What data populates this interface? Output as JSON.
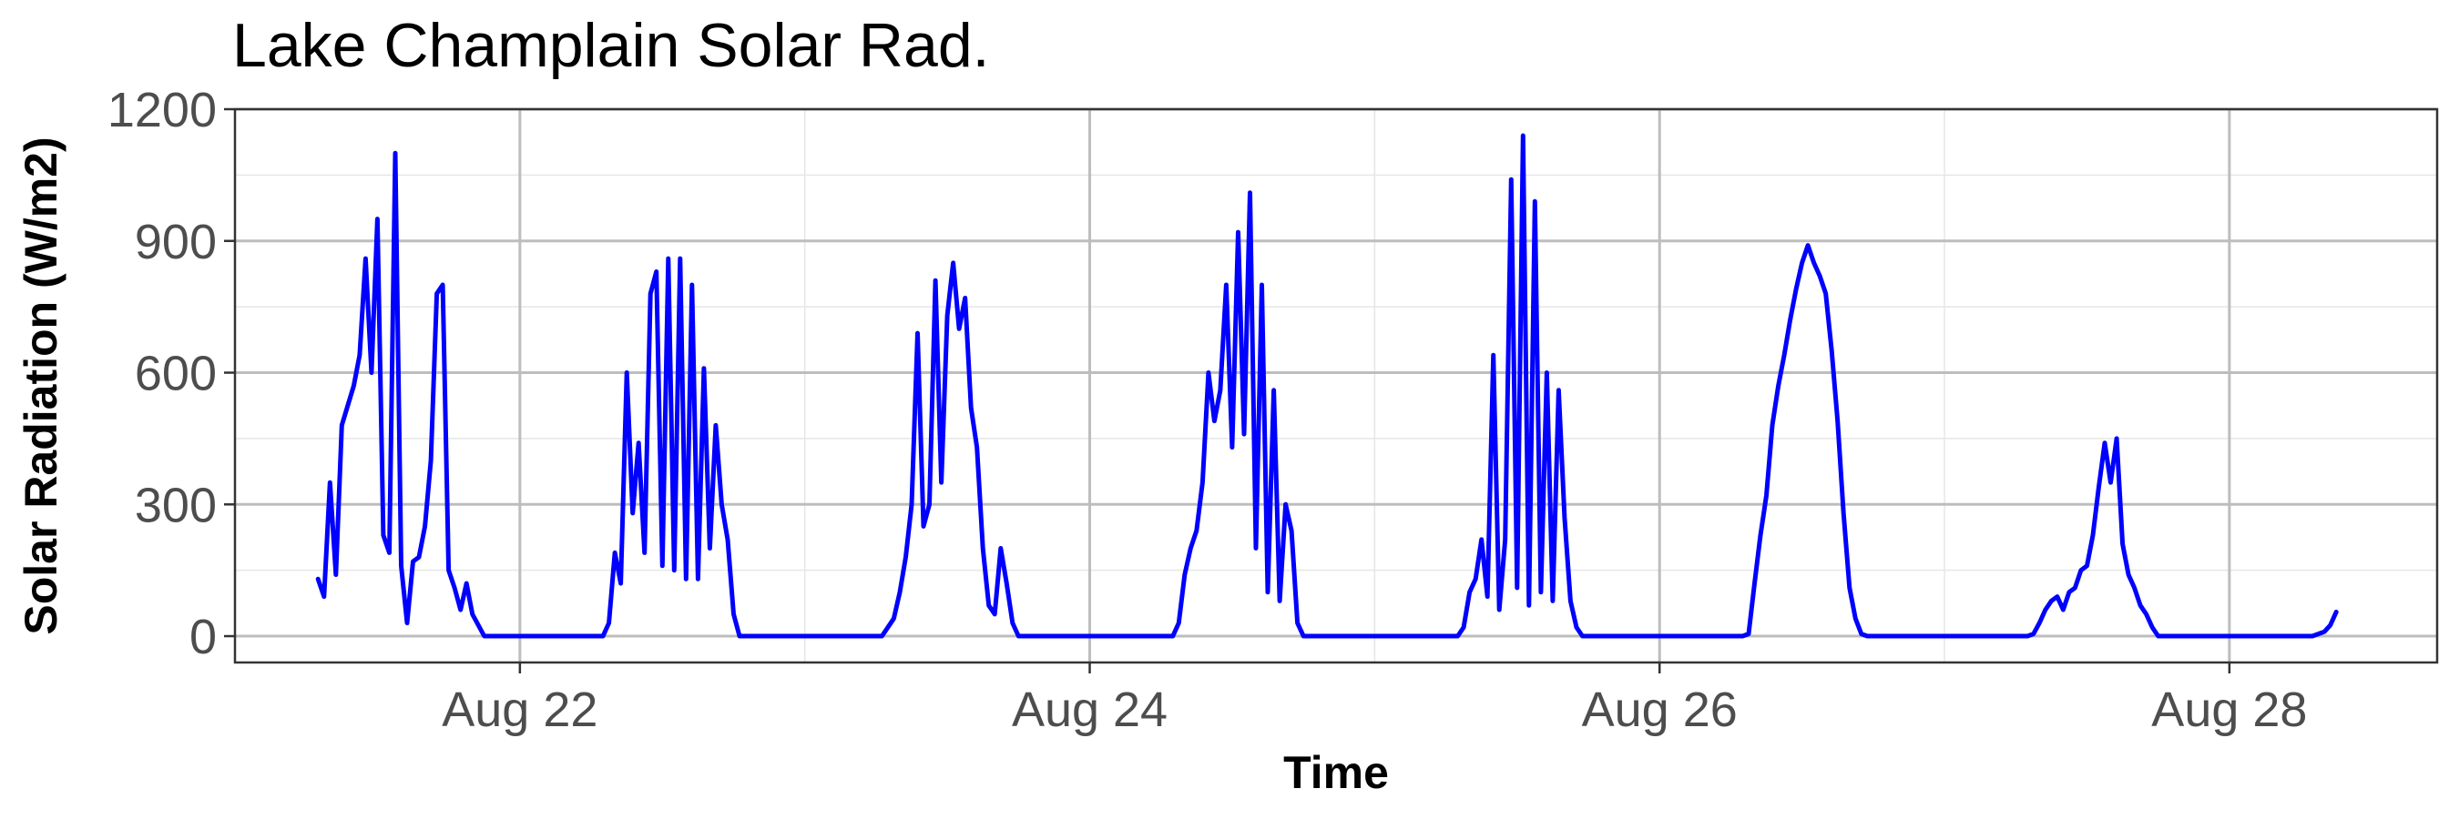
{
  "chart_data": {
    "type": "line",
    "title": "Lake Champlain Solar Rad.",
    "xlabel": "Time",
    "ylabel": "Solar Radiation (W/m2)",
    "ylim": [
      -60,
      1200
    ],
    "xlim": [
      "2024-08-21T00:00",
      "2024-08-28T17:30"
    ],
    "x_ticks": [
      {
        "date": "2024-08-22T00:00",
        "label": "Aug 22"
      },
      {
        "date": "2024-08-24T00:00",
        "label": "Aug 24"
      },
      {
        "date": "2024-08-26T00:00",
        "label": "Aug 26"
      },
      {
        "date": "2024-08-28T00:00",
        "label": "Aug 28"
      }
    ],
    "y_ticks": [
      0,
      300,
      600,
      900,
      1200
    ],
    "grid": true,
    "line_color": "#0000ff",
    "series": [
      {
        "x": [
          "2024-08-21T07:00",
          "2024-08-21T07:30",
          "2024-08-21T08:00",
          "2024-08-21T08:30",
          "2024-08-21T09:00",
          "2024-08-21T10:00",
          "2024-08-21T10:30",
          "2024-08-21T11:00",
          "2024-08-21T11:30",
          "2024-08-21T12:00",
          "2024-08-21T12:30",
          "2024-08-21T13:00",
          "2024-08-21T13:30",
          "2024-08-21T14:00",
          "2024-08-21T14:30",
          "2024-08-21T15:00",
          "2024-08-21T15:30",
          "2024-08-21T16:00",
          "2024-08-21T16:30",
          "2024-08-21T17:00",
          "2024-08-21T17:30",
          "2024-08-21T18:00",
          "2024-08-21T18:30",
          "2024-08-21T19:00",
          "2024-08-21T19:30",
          "2024-08-21T20:00",
          "2024-08-21T21:00",
          "2024-08-21T22:00",
          "2024-08-21T23:00",
          "2024-08-22T01:00",
          "2024-08-22T04:00",
          "2024-08-22T06:00",
          "2024-08-22T07:00",
          "2024-08-22T07:30",
          "2024-08-22T08:00",
          "2024-08-22T08:30",
          "2024-08-22T09:00",
          "2024-08-22T09:30",
          "2024-08-22T10:00",
          "2024-08-22T10:30",
          "2024-08-22T11:00",
          "2024-08-22T11:30",
          "2024-08-22T12:00",
          "2024-08-22T12:30",
          "2024-08-22T13:00",
          "2024-08-22T13:30",
          "2024-08-22T14:00",
          "2024-08-22T14:30",
          "2024-08-22T15:00",
          "2024-08-22T15:30",
          "2024-08-22T16:00",
          "2024-08-22T16:30",
          "2024-08-22T17:00",
          "2024-08-22T17:30",
          "2024-08-22T18:00",
          "2024-08-22T18:30",
          "2024-08-22T19:00",
          "2024-08-22T19:30",
          "2024-08-22T20:00",
          "2024-08-22T21:00",
          "2024-08-23T00:00",
          "2024-08-23T03:00",
          "2024-08-23T05:30",
          "2024-08-23T06:30",
          "2024-08-23T07:30",
          "2024-08-23T08:00",
          "2024-08-23T08:30",
          "2024-08-23T09:00",
          "2024-08-23T09:30",
          "2024-08-23T10:00",
          "2024-08-23T10:30",
          "2024-08-23T11:00",
          "2024-08-23T11:30",
          "2024-08-23T12:00",
          "2024-08-23T12:30",
          "2024-08-23T13:00",
          "2024-08-23T13:30",
          "2024-08-23T14:00",
          "2024-08-23T14:30",
          "2024-08-23T15:00",
          "2024-08-23T15:30",
          "2024-08-23T16:00",
          "2024-08-23T16:30",
          "2024-08-23T17:00",
          "2024-08-23T17:30",
          "2024-08-23T18:00",
          "2024-08-23T18:30",
          "2024-08-23T19:00",
          "2024-08-23T20:00",
          "2024-08-24T00:00",
          "2024-08-24T04:00",
          "2024-08-24T06:00",
          "2024-08-24T07:00",
          "2024-08-24T07:30",
          "2024-08-24T08:00",
          "2024-08-24T08:30",
          "2024-08-24T09:00",
          "2024-08-24T09:30",
          "2024-08-24T10:00",
          "2024-08-24T10:30",
          "2024-08-24T11:00",
          "2024-08-24T11:30",
          "2024-08-24T12:00",
          "2024-08-24T12:30",
          "2024-08-24T13:00",
          "2024-08-24T13:30",
          "2024-08-24T14:00",
          "2024-08-24T14:30",
          "2024-08-24T15:00",
          "2024-08-24T15:30",
          "2024-08-24T16:00",
          "2024-08-24T16:30",
          "2024-08-24T17:00",
          "2024-08-24T17:30",
          "2024-08-24T18:00",
          "2024-08-24T18:30",
          "2024-08-24T19:00",
          "2024-08-24T20:00",
          "2024-08-25T00:00",
          "2024-08-25T04:00",
          "2024-08-25T06:00",
          "2024-08-25T07:00",
          "2024-08-25T07:30",
          "2024-08-25T08:00",
          "2024-08-25T08:30",
          "2024-08-25T09:00",
          "2024-08-25T09:30",
          "2024-08-25T10:00",
          "2024-08-25T10:30",
          "2024-08-25T11:00",
          "2024-08-25T11:30",
          "2024-08-25T12:00",
          "2024-08-25T12:30",
          "2024-08-25T13:00",
          "2024-08-25T13:30",
          "2024-08-25T14:00",
          "2024-08-25T14:30",
          "2024-08-25T15:00",
          "2024-08-25T15:30",
          "2024-08-25T16:00",
          "2024-08-25T16:30",
          "2024-08-25T17:00",
          "2024-08-25T17:30",
          "2024-08-25T18:00",
          "2024-08-25T18:30",
          "2024-08-25T19:00",
          "2024-08-25T20:00",
          "2024-08-26T00:00",
          "2024-08-26T04:00",
          "2024-08-26T06:00",
          "2024-08-26T07:00",
          "2024-08-26T07:30",
          "2024-08-26T08:00",
          "2024-08-26T08:30",
          "2024-08-26T09:00",
          "2024-08-26T09:30",
          "2024-08-26T10:00",
          "2024-08-26T10:30",
          "2024-08-26T11:00",
          "2024-08-26T11:30",
          "2024-08-26T12:00",
          "2024-08-26T12:30",
          "2024-08-26T13:00",
          "2024-08-26T13:30",
          "2024-08-26T14:00",
          "2024-08-26T14:30",
          "2024-08-26T15:00",
          "2024-08-26T15:30",
          "2024-08-26T16:00",
          "2024-08-26T16:30",
          "2024-08-26T17:00",
          "2024-08-26T17:30",
          "2024-08-26T18:00",
          "2024-08-26T18:30",
          "2024-08-26T19:00",
          "2024-08-26T20:00",
          "2024-08-27T00:00",
          "2024-08-27T04:00",
          "2024-08-27T06:00",
          "2024-08-27T07:00",
          "2024-08-27T07:30",
          "2024-08-27T08:00",
          "2024-08-27T08:30",
          "2024-08-27T09:00",
          "2024-08-27T09:30",
          "2024-08-27T10:00",
          "2024-08-27T10:30",
          "2024-08-27T11:00",
          "2024-08-27T11:30",
          "2024-08-27T12:00",
          "2024-08-27T12:30",
          "2024-08-27T13:00",
          "2024-08-27T13:30",
          "2024-08-27T14:00",
          "2024-08-27T14:30",
          "2024-08-27T15:00",
          "2024-08-27T15:30",
          "2024-08-27T16:00",
          "2024-08-27T16:30",
          "2024-08-27T17:00",
          "2024-08-27T17:30",
          "2024-08-27T18:00",
          "2024-08-27T18:30",
          "2024-08-27T19:00",
          "2024-08-27T20:00",
          "2024-08-28T00:00",
          "2024-08-28T04:00",
          "2024-08-28T06:00",
          "2024-08-28T07:00",
          "2024-08-28T07:30",
          "2024-08-28T08:00",
          "2024-08-28T08:30",
          "2024-08-28T09:00"
        ],
        "y": [
          130,
          90,
          350,
          140,
          480,
          570,
          640,
          860,
          600,
          950,
          230,
          190,
          1100,
          160,
          30,
          170,
          180,
          250,
          400,
          780,
          800,
          150,
          110,
          60,
          120,
          50,
          0,
          0,
          0,
          0,
          0,
          0,
          0,
          30,
          190,
          120,
          600,
          280,
          440,
          190,
          780,
          830,
          160,
          860,
          150,
          860,
          130,
          800,
          130,
          610,
          200,
          480,
          300,
          220,
          50,
          0,
          0,
          0,
          0,
          0,
          0,
          0,
          0,
          0,
          40,
          100,
          180,
          300,
          690,
          250,
          300,
          810,
          350,
          730,
          850,
          700,
          770,
          520,
          430,
          200,
          70,
          50,
          200,
          120,
          30,
          0,
          0,
          0,
          0,
          0,
          0,
          0,
          0,
          30,
          140,
          200,
          240,
          350,
          600,
          490,
          560,
          800,
          430,
          920,
          460,
          1010,
          200,
          800,
          100,
          560,
          80,
          300,
          240,
          30,
          0,
          0,
          0,
          0,
          0,
          0,
          0,
          0,
          20,
          100,
          130,
          220,
          90,
          640,
          60,
          220,
          1040,
          110,
          1140,
          70,
          990,
          100,
          600,
          80,
          560,
          270,
          80,
          20,
          0,
          0,
          0,
          0,
          0,
          0,
          0,
          0,
          0,
          5,
          120,
          230,
          320,
          480,
          570,
          640,
          720,
          790,
          850,
          890,
          850,
          820,
          780,
          650,
          490,
          280,
          110,
          40,
          5,
          0,
          0,
          0,
          0,
          0,
          0,
          0,
          0,
          0,
          5,
          30,
          60,
          80,
          90,
          60,
          100,
          110,
          150,
          160,
          230,
          340,
          440,
          350,
          450,
          210,
          140,
          110,
          70,
          50,
          20,
          0,
          0,
          0,
          0,
          0,
          0,
          0,
          0,
          5,
          10,
          25,
          55
        ]
      }
    ]
  }
}
